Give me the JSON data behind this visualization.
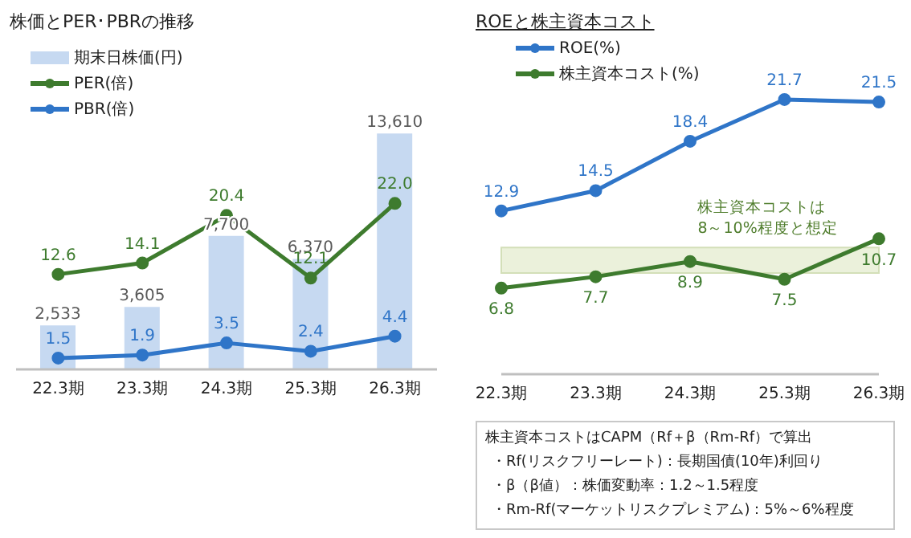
{
  "chart_data": [
    {
      "type": "bar",
      "title": "株価とPER･PBRの推移",
      "categories": [
        "22.3期",
        "23.3期",
        "24.3期",
        "25.3期",
        "26.3期"
      ],
      "series": [
        {
          "name": "期末日株価(円)",
          "type": "bar",
          "axis": "y",
          "color": "#c6d9f1",
          "values": [
            2533,
            3605,
            7700,
            6370,
            13610
          ],
          "value_labels": [
            "2,533",
            "3,605",
            "7,700",
            "6,370",
            "13,610"
          ]
        },
        {
          "name": "PER(倍)",
          "type": "line",
          "axis": "y2",
          "color": "#3e7b2e",
          "values": [
            12.6,
            14.1,
            20.4,
            12.1,
            22.0
          ],
          "value_labels": [
            "12.6",
            "14.1",
            "20.4",
            "12.1",
            "22.0"
          ]
        },
        {
          "name": "PBR(倍)",
          "type": "line",
          "axis": "y2",
          "color": "#2f75c8",
          "values": [
            1.5,
            1.9,
            3.5,
            2.4,
            4.4
          ],
          "value_labels": [
            "1.5",
            "1.9",
            "3.5",
            "2.4",
            "4.4"
          ]
        }
      ],
      "legend": "top left",
      "marker": "circle",
      "tick_labels": "x",
      "grid": false
    },
    {
      "type": "line",
      "title": "ROEと株主資本コスト",
      "categories": [
        "22.3期",
        "23.3期",
        "24.3期",
        "25.3期",
        "26.3期"
      ],
      "series": [
        {
          "name": "ROE(%)",
          "color": "#2f75c8",
          "values": [
            12.9,
            14.5,
            18.4,
            21.7,
            21.5
          ]
        },
        {
          "name": "株主資本コスト(%)",
          "color": "#3e7b2e",
          "values": [
            6.8,
            7.7,
            8.9,
            7.5,
            10.7
          ]
        }
      ],
      "bands": [
        {
          "axis": "y",
          "from": 8,
          "to": 10,
          "label": "株主資本コストは\n8～10%程度と想定",
          "color": "#ebf1db"
        }
      ],
      "annotations": [
        "株主資本コストはCAPM（Rf＋β（Rm-Rf）で算出",
        "・Rf(リスクフリーレート)：長期国債(10年)利回り",
        "・β（β値）：株価変動率：1.2～1.5程度",
        "・Rm-Rf(マーケットリスクプレミアム)：5%～6%程度"
      ],
      "data_labels": true,
      "legend": "top left",
      "marker": "circle",
      "tick_labels": "x",
      "grid": false
    }
  ]
}
